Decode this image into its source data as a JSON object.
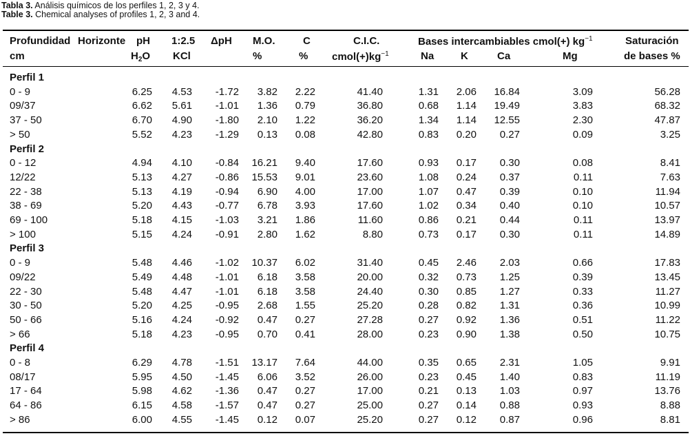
{
  "caption": {
    "es_label": "Tabla 3.",
    "es_text": "Análisis químicos de los perfiles 1, 2, 3 y 4.",
    "en_label": "Table 3.",
    "en_text": "Chemical analyses of profiles 1, 2, 3 and 4."
  },
  "headers": {
    "profundidad": "Profundidad",
    "horizonte": "Horizonte",
    "cm": "cm",
    "ph": "pH",
    "h2o_h": "H",
    "h2o_sub": "2",
    "h2o_o": "O",
    "ratio": "1:2.5",
    "kcl": "KCl",
    "dph": "ΔpH",
    "mo": "M.O.",
    "mo_unit": "%",
    "c": "C",
    "c_unit": "%",
    "cic": "C.I.C.",
    "cic_unit": "cmol(+)kg",
    "cic_exp": "−1",
    "bases": "Bases intercambiables cmol(+) kg",
    "bases_exp": "−1",
    "na": "Na",
    "k": "K",
    "ca": "Ca",
    "mg": "Mg",
    "sat1": "Saturación",
    "sat2": "de bases %"
  },
  "groups": [
    {
      "title": "Perfil 1",
      "rows": [
        [
          "0 - 9",
          "6.25",
          "4.53",
          "-1.72",
          "3.82",
          "2.22",
          "41.40",
          "1.31",
          "2.06",
          "16.84",
          "3.09",
          "56.28"
        ],
        [
          "09/37",
          "6.62",
          "5.61",
          "-1.01",
          "1.36",
          "0.79",
          "36.80",
          "0.68",
          "1.14",
          "19.49",
          "3.83",
          "68.32"
        ],
        [
          "37 - 50",
          "6.70",
          "4.90",
          "-1.80",
          "2.10",
          "1.22",
          "36.20",
          "1.34",
          "1.14",
          "12.55",
          "2.30",
          "47.87"
        ],
        [
          "> 50",
          "5.52",
          "4.23",
          "-1.29",
          "0.13",
          "0.08",
          "42.80",
          "0.83",
          "0.20",
          "0.27",
          "0.09",
          "3.25"
        ]
      ]
    },
    {
      "title": "Perfil 2",
      "rows": [
        [
          "0 - 12",
          "4.94",
          "4.10",
          "-0.84",
          "16.21",
          "9.40",
          "17.60",
          "0.93",
          "0.17",
          "0.30",
          "0.08",
          "8.41"
        ],
        [
          "12/22",
          "5.13",
          "4.27",
          "-0.86",
          "15.53",
          "9.01",
          "23.60",
          "1.08",
          "0.24",
          "0.37",
          "0.11",
          "7.63"
        ],
        [
          "22 - 38",
          "5.13",
          "4.19",
          "-0.94",
          "6.90",
          "4.00",
          "17.00",
          "1.07",
          "0.47",
          "0.39",
          "0.10",
          "11.94"
        ],
        [
          "38 - 69",
          "5.20",
          "4.43",
          "-0.77",
          "6.78",
          "3.93",
          "17.60",
          "1.02",
          "0.34",
          "0.40",
          "0.10",
          "10.57"
        ],
        [
          "69 - 100",
          "5.18",
          "4.15",
          "-1.03",
          "3.21",
          "1.86",
          "11.60",
          "0.86",
          "0.21",
          "0.44",
          "0.11",
          "13.97"
        ],
        [
          "> 100",
          "5.15",
          "4.24",
          "-0.91",
          "2.80",
          "1.62",
          "8.80",
          "0.73",
          "0.17",
          "0.30",
          "0.11",
          "14.89"
        ]
      ]
    },
    {
      "title": "Perfil 3",
      "rows": [
        [
          "0 - 9",
          "5.48",
          "4.46",
          "-1.02",
          "10.37",
          "6.02",
          "31.40",
          "0.45",
          "2.46",
          "2.03",
          "0.66",
          "17.83"
        ],
        [
          "09/22",
          "5.49",
          "4.48",
          "-1.01",
          "6.18",
          "3.58",
          "20.00",
          "0.32",
          "0.73",
          "1.25",
          "0.39",
          "13.45"
        ],
        [
          "22 - 30",
          "5.48",
          "4.47",
          "-1.01",
          "6.18",
          "3.58",
          "24.40",
          "0.30",
          "0.85",
          "1.27",
          "0.33",
          "11.27"
        ],
        [
          "30 - 50",
          "5.20",
          "4.25",
          "-0.95",
          "2.68",
          "1.55",
          "25.20",
          "0.28",
          "0.82",
          "1.31",
          "0.36",
          "10.99"
        ],
        [
          "50 - 66",
          "5.16",
          "4.24",
          "-0.92",
          "0.47",
          "0.27",
          "27.28",
          "0.27",
          "0.92",
          "1.36",
          "0.51",
          "11.22"
        ],
        [
          "> 66",
          "5.18",
          "4.23",
          "-0.95",
          "0.70",
          "0.41",
          "28.00",
          "0.23",
          "0.90",
          "1.38",
          "0.50",
          "10.75"
        ]
      ]
    },
    {
      "title": "Perfil 4",
      "rows": [
        [
          "0 - 8",
          "6.29",
          "4.78",
          "-1.51",
          "13.17",
          "7.64",
          "44.00",
          "0.35",
          "0.65",
          "2.31",
          "1.05",
          "9.91"
        ],
        [
          "08/17",
          "5.95",
          "4.50",
          "-1.45",
          "6.06",
          "3.52",
          "26.00",
          "0.23",
          "0.45",
          "1.40",
          "0.83",
          "11.19"
        ],
        [
          "17 - 64",
          "5.98",
          "4.62",
          "-1.36",
          "0.47",
          "0.27",
          "17.00",
          "0.21",
          "0.13",
          "1.03",
          "0.97",
          "13.76"
        ],
        [
          "64 - 86",
          "6.15",
          "4.58",
          "-1.57",
          "0.47",
          "0.27",
          "25.00",
          "0.27",
          "0.14",
          "0.88",
          "0.93",
          "8.88"
        ],
        [
          "> 86",
          "6.00",
          "4.55",
          "-1.45",
          "0.12",
          "0.07",
          "25.20",
          "0.27",
          "0.12",
          "0.87",
          "0.96",
          "8.81"
        ]
      ]
    }
  ]
}
